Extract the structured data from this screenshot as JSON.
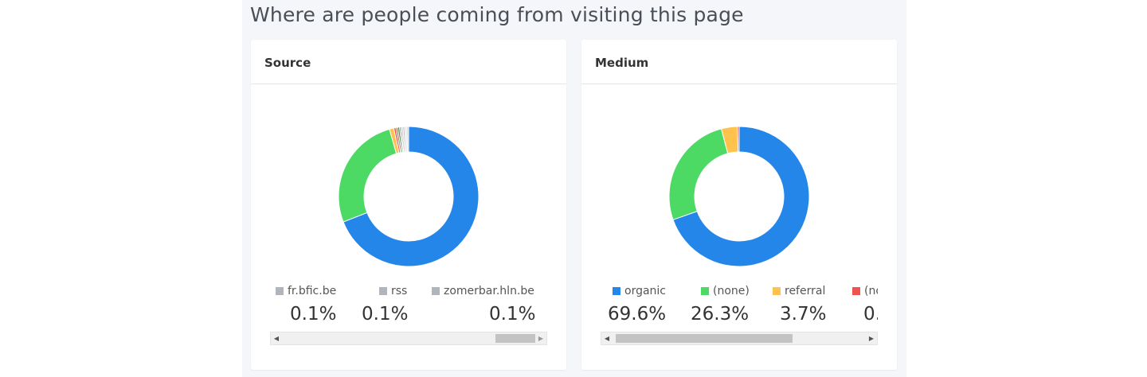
{
  "page": {
    "title": "Where are people coming from visiting this page"
  },
  "colors": {
    "blue": "#2386e8",
    "green": "#4cd964",
    "yellow": "#ffc34d",
    "red": "#ef5350",
    "gray": "#b0b4bb"
  },
  "source": {
    "title": "Source",
    "chart_data": {
      "type": "pie",
      "donut": true,
      "slices": [
        {
          "value": 68.8,
          "color": "#2386e8"
        },
        {
          "value": 26.4,
          "color": "#4cd964"
        },
        {
          "value": 1.0,
          "color": "#ffc34d"
        },
        {
          "value": 0.5,
          "color": "#ef5350"
        },
        {
          "value": 0.4,
          "color": "#8b6d3b"
        },
        {
          "value": 0.4,
          "color": "#2e7d32"
        },
        {
          "value": 0.3,
          "color": "#555555"
        },
        {
          "value": 0.5,
          "color": "#d0d3d8"
        },
        {
          "value": 0.4,
          "color": "#b7bcc4"
        },
        {
          "value": 0.5,
          "color": "#e4e6ea"
        },
        {
          "value": 0.4,
          "color": "#c9ccd2"
        }
      ]
    },
    "legend": [
      {
        "label": "fr.bfic.be",
        "value": "0.1%",
        "color": "#b0b4bb"
      },
      {
        "label": "rss",
        "value": "0.1%",
        "color": "#b0b4bb"
      },
      {
        "label": "zomerbar.hln.be",
        "value": "0.1%",
        "color": "#b0b4bb"
      }
    ]
  },
  "medium": {
    "title": "Medium",
    "chart_data": {
      "type": "pie",
      "donut": true,
      "slices": [
        {
          "value": 69.6,
          "color": "#2386e8"
        },
        {
          "value": 26.3,
          "color": "#4cd964"
        },
        {
          "value": 3.7,
          "color": "#ffc34d"
        },
        {
          "value": 0.4,
          "color": "#ef5350"
        }
      ]
    },
    "legend": [
      {
        "label": "organic",
        "value": "69.6%",
        "color": "#2386e8"
      },
      {
        "label": "(none)",
        "value": "26.3%",
        "color": "#4cd964"
      },
      {
        "label": "referral",
        "value": "3.7%",
        "color": "#ffc34d"
      },
      {
        "label": "(no",
        "value": "0.",
        "color": "#ef5350"
      }
    ]
  }
}
